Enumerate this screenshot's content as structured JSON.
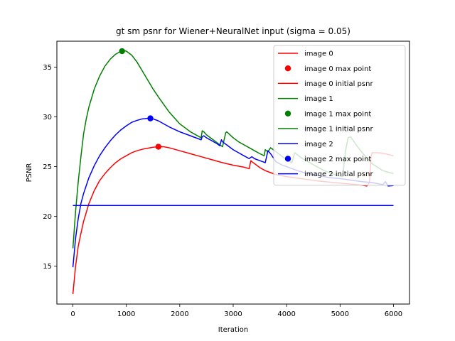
{
  "chart_data": {
    "type": "line",
    "title": "gt sm psnr for Wiener+NeuralNet input (sigma = 0.05)",
    "xlabel": "Iteration",
    "ylabel": "PSNR",
    "xlim": [
      -300,
      6300
    ],
    "ylim": [
      11.2,
      37.6
    ],
    "xticks": [
      0,
      1000,
      2000,
      3000,
      4000,
      5000,
      6000
    ],
    "yticks": [
      15,
      20,
      25,
      30,
      35
    ],
    "grid": false,
    "legend_position": "top-right",
    "legend": [
      {
        "label": "image 0",
        "kind": "line",
        "color": "#ff0000"
      },
      {
        "label": "image 0 max point",
        "kind": "point",
        "color": "#ff0000"
      },
      {
        "label": "image 0 initial psnr",
        "kind": "line",
        "color": "#ff0000"
      },
      {
        "label": "image 1",
        "kind": "line",
        "color": "#008000"
      },
      {
        "label": "image 1 max point",
        "kind": "point",
        "color": "#008000"
      },
      {
        "label": "image 1 initial psnr",
        "kind": "line",
        "color": "#008000"
      },
      {
        "label": "image 2",
        "kind": "line",
        "color": "#0000ff"
      },
      {
        "label": "image 2 max point",
        "kind": "point",
        "color": "#0000ff"
      },
      {
        "label": "image 2 initial psnr",
        "kind": "line",
        "color": "#0000ff"
      }
    ],
    "series": [
      {
        "name": "image 0",
        "color": "#ff0000",
        "x": [
          0,
          50,
          100,
          150,
          200,
          300,
          400,
          500,
          600,
          700,
          800,
          900,
          1000,
          1100,
          1200,
          1300,
          1400,
          1500,
          1600,
          1700,
          1800,
          2000,
          2200,
          2400,
          2600,
          2800,
          3000,
          3200,
          3300,
          3330,
          3350,
          3400,
          3500,
          3600,
          3700,
          3800,
          4000,
          4200,
          4400,
          4600,
          4800,
          5000,
          5200,
          5400,
          5500,
          5550,
          5580,
          5600,
          5700,
          5800,
          6000
        ],
        "y": [
          12.2,
          15.0,
          17.0,
          18.3,
          19.5,
          21.3,
          22.6,
          23.6,
          24.3,
          24.9,
          25.4,
          25.8,
          26.1,
          26.4,
          26.6,
          26.75,
          26.85,
          26.95,
          27.0,
          27.0,
          26.9,
          26.6,
          26.3,
          26.0,
          25.7,
          25.4,
          25.15,
          24.95,
          24.8,
          25.6,
          25.5,
          25.3,
          24.9,
          24.6,
          24.4,
          24.2,
          24.0,
          23.85,
          23.7,
          23.55,
          23.45,
          23.35,
          23.25,
          23.15,
          23.05,
          23.4,
          26.0,
          26.4,
          26.4,
          26.35,
          26.1
        ]
      },
      {
        "name": "image 1",
        "color": "#008000",
        "x": [
          0,
          50,
          100,
          150,
          200,
          250,
          300,
          400,
          500,
          600,
          700,
          800,
          900,
          950,
          1000,
          1100,
          1200,
          1300,
          1400,
          1500,
          1600,
          1800,
          2000,
          2200,
          2400,
          2420,
          2450,
          2500,
          2600,
          2700,
          2800,
          2860,
          2880,
          2900,
          3000,
          3100,
          3200,
          3300,
          3400,
          3500,
          3580,
          3600,
          3650,
          3700,
          3750,
          3800,
          3900,
          4000,
          4100,
          4150,
          4200,
          4300,
          4500,
          4700,
          4900,
          5050,
          5100,
          5150,
          5200,
          5300,
          5400,
          5500,
          5600,
          5800,
          6000
        ],
        "y": [
          16.8,
          20.5,
          23.5,
          26.0,
          28.3,
          29.8,
          31.0,
          32.8,
          34.1,
          35.1,
          35.8,
          36.3,
          36.6,
          36.65,
          36.6,
          36.2,
          35.5,
          34.6,
          33.7,
          32.8,
          32.0,
          30.5,
          29.3,
          28.5,
          27.9,
          28.6,
          28.5,
          28.2,
          27.8,
          27.4,
          27.0,
          28.4,
          28.5,
          28.4,
          27.9,
          27.5,
          27.2,
          26.9,
          26.6,
          26.3,
          26.1,
          26.7,
          26.5,
          26.9,
          26.7,
          26.5,
          26.1,
          25.7,
          25.4,
          26.4,
          26.2,
          25.8,
          25.2,
          24.6,
          24.2,
          24.0,
          26.5,
          27.9,
          28.0,
          27.2,
          26.5,
          25.9,
          25.3,
          24.6,
          24.3
        ]
      },
      {
        "name": "image 2",
        "color": "#0000ff",
        "x": [
          0,
          50,
          100,
          150,
          200,
          300,
          400,
          500,
          600,
          700,
          800,
          900,
          1000,
          1100,
          1200,
          1300,
          1400,
          1450,
          1500,
          1600,
          1800,
          2000,
          2200,
          2400,
          2420,
          2450,
          2500,
          2600,
          2700,
          2750,
          2780,
          2800,
          2900,
          3000,
          3100,
          3200,
          3300,
          3320,
          3350,
          3400,
          3500,
          3600,
          3650,
          3700,
          3800,
          3900,
          4000,
          4200,
          4400,
          4600,
          4800,
          5000,
          5200,
          5400,
          5600,
          5700,
          5800,
          5850,
          5900,
          6000
        ],
        "y": [
          14.9,
          17.8,
          19.8,
          21.3,
          22.3,
          23.9,
          25.1,
          26.1,
          26.9,
          27.6,
          28.2,
          28.7,
          29.1,
          29.45,
          29.65,
          29.8,
          29.85,
          29.85,
          29.8,
          29.6,
          29.0,
          28.5,
          28.1,
          27.7,
          28.0,
          28.1,
          27.9,
          27.6,
          27.3,
          27.1,
          27.7,
          27.5,
          27.1,
          26.7,
          26.4,
          26.1,
          25.8,
          25.9,
          26.0,
          25.8,
          25.6,
          25.4,
          26.6,
          26.3,
          25.5,
          25.2,
          25.0,
          24.6,
          24.3,
          24.1,
          23.9,
          23.8,
          23.65,
          23.5,
          23.4,
          23.3,
          23.2,
          23.5,
          23.05,
          23.1
        ]
      },
      {
        "name": "image 0 initial psnr",
        "color": "#ff0000",
        "x": [
          0,
          6000
        ],
        "y": [
          21.1,
          21.1
        ]
      },
      {
        "name": "image 1 initial psnr",
        "color": "#008000",
        "x": [
          0,
          6000
        ],
        "y": [
          21.1,
          21.1
        ]
      },
      {
        "name": "image 2 initial psnr",
        "color": "#0000ff",
        "x": [
          0,
          6000
        ],
        "y": [
          21.1,
          21.1
        ]
      }
    ],
    "max_points": [
      {
        "name": "image 0 max point",
        "x": 1600,
        "y": 27.0,
        "color": "#ff0000"
      },
      {
        "name": "image 1 max point",
        "x": 920,
        "y": 36.6,
        "color": "#008000"
      },
      {
        "name": "image 2 max point",
        "x": 1450,
        "y": 29.85,
        "color": "#0000ff"
      }
    ]
  }
}
